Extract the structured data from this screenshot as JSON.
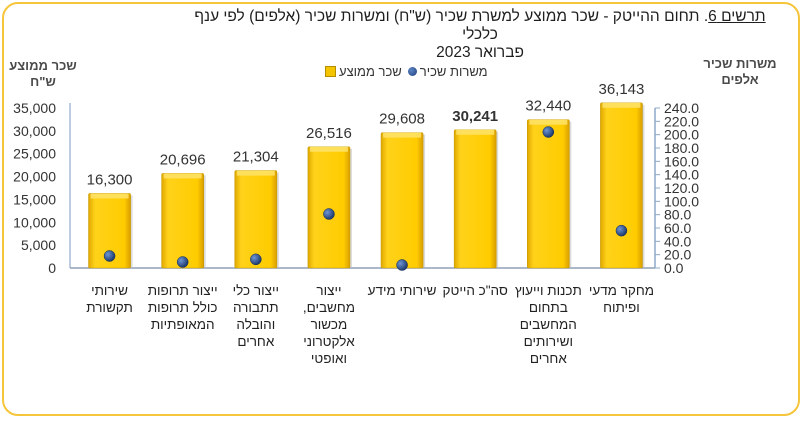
{
  "title": {
    "label": "תרשים 6",
    "line1": ". תחום ההייטק -  שכר ממוצע למשרת שכיר (ש\"ח) ומשרות שכיר (אלפים) לפי ענף כלכלי",
    "line2": "פברואר 2023"
  },
  "colors": {
    "bar": "#f5c400",
    "bar_edge": "#c79a00",
    "dot": "#1f3f7a",
    "frame": "#f5c53a",
    "axis": "#8fa8cc"
  },
  "chart_data": {
    "type": "bar",
    "title": "תרשים 6. תחום ההייטק - שכר ממוצע למשרת שכיר (ש\"ח) ומשרות שכיר (אלפים) לפי ענף כלכלי פברואר 2023",
    "categories": [
      "שירותי תקשורת",
      "ייצור תרופות כולל תרופות המאופתיות",
      "ייצור כלי תתבורה והובלה אחרים",
      "ייצור מחשבים, מכשור אלקטרוני ואופטי",
      "שירותי מידע",
      "סה\"כ הייטק",
      "תכנות וייעוץ בתחום המחשבים ושירותים אחרים",
      "מחקר מדעי ופיתוח"
    ],
    "category_lines": [
      [
        "שירותי",
        "תקשורת"
      ],
      [
        "ייצור תרופות",
        "כולל תרופות",
        "המאופתיות"
      ],
      [
        "ייצור כלי",
        "תתבורה",
        "והובלה",
        "אחרים"
      ],
      [
        "ייצור",
        "מחשבים,",
        "מכשור",
        "אלקטרוני",
        "ואופטי"
      ],
      [
        "שירותי מידע"
      ],
      [
        "סה\"כ הייטק"
      ],
      [
        "תכנות וייעוץ",
        "בתחום",
        "המחשבים",
        "ושירותים",
        "אחרים"
      ],
      [
        "מחקר מדעי",
        "ופיתוח"
      ]
    ],
    "series": [
      {
        "name": "שכר ממוצע",
        "type": "bar",
        "axis": "left",
        "values": [
          16300,
          20696,
          21304,
          26516,
          29608,
          30241,
          32440,
          36143
        ],
        "labels": [
          "16,300",
          "20,696",
          "21,304",
          "26,516",
          "29,608",
          "30,241",
          "32,440",
          "36,143"
        ],
        "bold_index": 5
      },
      {
        "name": "משרות שכיר",
        "type": "scatter",
        "axis": "right",
        "values": [
          18,
          9,
          13,
          81,
          4.5,
          null,
          204,
          56
        ]
      }
    ],
    "left_axis": {
      "title_lines": [
        "שכר ממוצע",
        "ש\"ח"
      ],
      "ylim": [
        0,
        35000
      ],
      "ticks": [
        "0",
        "5,000",
        "10,000",
        "15,000",
        "20,000",
        "25,000",
        "30,000",
        "35,000"
      ],
      "tick_values": [
        0,
        5000,
        10000,
        15000,
        20000,
        25000,
        30000,
        35000
      ]
    },
    "right_axis": {
      "title_lines": [
        "משרות שכיר",
        "אלפים"
      ],
      "ylim": [
        0,
        240
      ],
      "ticks": [
        "0.0",
        "20.0",
        "40.0",
        "60.0",
        "80.0",
        "100.0",
        "120.0",
        "140.0",
        "160.0",
        "180.0",
        "200.0",
        "220.0",
        "240.0"
      ],
      "tick_values": [
        0,
        20,
        40,
        60,
        80,
        100,
        120,
        140,
        160,
        180,
        200,
        220,
        240
      ]
    },
    "legend": {
      "position": "top",
      "items": [
        "משרות שכיר",
        "שכר ממוצע"
      ]
    },
    "grid": false
  }
}
